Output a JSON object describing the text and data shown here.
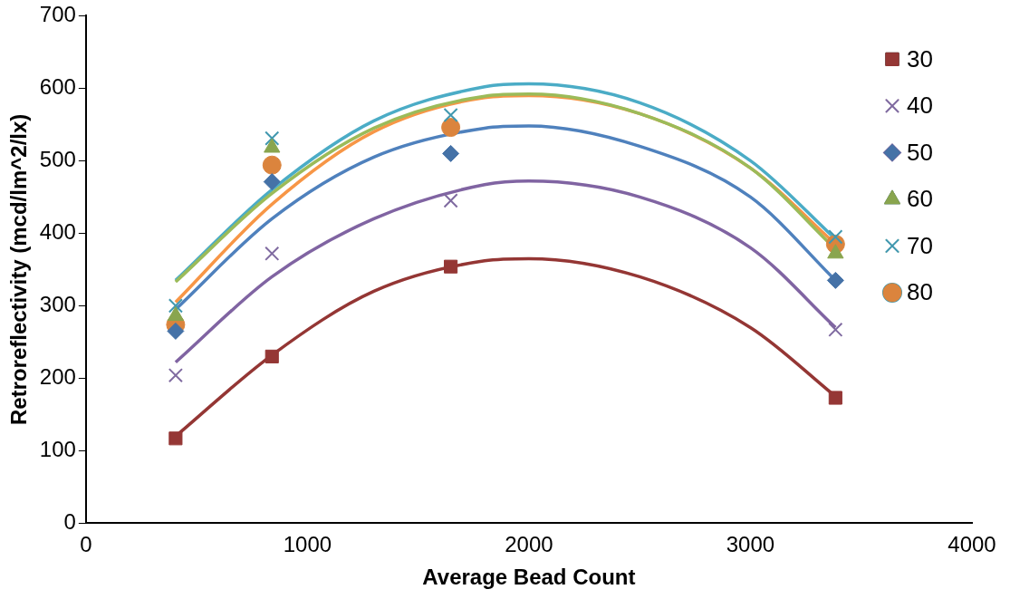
{
  "chart_data": {
    "type": "scatter",
    "xlabel": "Average Bead Count",
    "ylabel": "Retroreflectivity (mcd/lm^2/lx)",
    "xlim": [
      0,
      4000
    ],
    "xticks": [
      0,
      1000,
      2000,
      3000,
      4000
    ],
    "ylim": [
      0,
      700
    ],
    "yticks": [
      0,
      100,
      200,
      300,
      400,
      500,
      600,
      700
    ],
    "grid": false,
    "legend": "top right",
    "x": [
      405,
      840,
      1647,
      3384
    ],
    "series": [
      {
        "name": "30",
        "color": "#953735",
        "marker": "square",
        "values": [
          117,
          230,
          354,
          173
        ]
      },
      {
        "name": "40",
        "color": "#7f6aa0",
        "marker": "cross",
        "values": [
          204,
          372,
          445,
          267
        ]
      },
      {
        "name": "50",
        "color": "#4572a7",
        "marker": "diamond",
        "values": [
          265,
          471,
          510,
          335
        ]
      },
      {
        "name": "60",
        "color": "#89a54e",
        "marker": "triangle",
        "values": [
          286,
          518,
          null,
          372
        ]
      },
      {
        "name": "70",
        "color": "#4198af",
        "marker": "cross",
        "values": [
          300,
          531,
          563,
          395
        ]
      },
      {
        "name": "80",
        "color": "#db843d",
        "marker": "circle",
        "values": [
          274,
          494,
          546,
          385
        ]
      },
      {
        "type": "line",
        "color": "#943634",
        "marker": "none",
        "x": [
          405,
          840,
          1300,
          1800,
          2000,
          2500,
          3000,
          3384
        ],
        "values": [
          120,
          232,
          320,
          362,
          365,
          340,
          270,
          175
        ]
      },
      {
        "type": "line",
        "color": "#8064a2",
        "marker": "none",
        "x": [
          405,
          840,
          1300,
          1800,
          2000,
          2500,
          3000,
          3384
        ],
        "values": [
          222,
          340,
          420,
          467,
          472,
          450,
          380,
          270
        ]
      },
      {
        "type": "line",
        "color": "#4f81bd",
        "marker": "none",
        "x": [
          405,
          840,
          1300,
          1800,
          2000,
          2500,
          3000,
          3384
        ],
        "values": [
          295,
          420,
          505,
          545,
          548,
          520,
          450,
          335
        ]
      },
      {
        "type": "line",
        "color": "#9bbb59",
        "marker": "none",
        "x": [
          405,
          840,
          1300,
          1800,
          2000,
          2500,
          3000,
          3384
        ],
        "values": [
          333,
          455,
          545,
          589,
          592,
          565,
          490,
          378
        ]
      },
      {
        "type": "line",
        "color": "#4bacc6",
        "marker": "none",
        "x": [
          405,
          840,
          1300,
          1800,
          2000,
          2500,
          3000,
          3384
        ],
        "values": [
          335,
          460,
          555,
          602,
          606,
          580,
          500,
          392
        ]
      },
      {
        "type": "line",
        "color": "#f79646",
        "marker": "none",
        "x": [
          405,
          840,
          1300,
          1800,
          2000,
          2500,
          3000,
          3384
        ],
        "values": [
          305,
          440,
          540,
          587,
          590,
          565,
          490,
          385
        ]
      }
    ]
  }
}
